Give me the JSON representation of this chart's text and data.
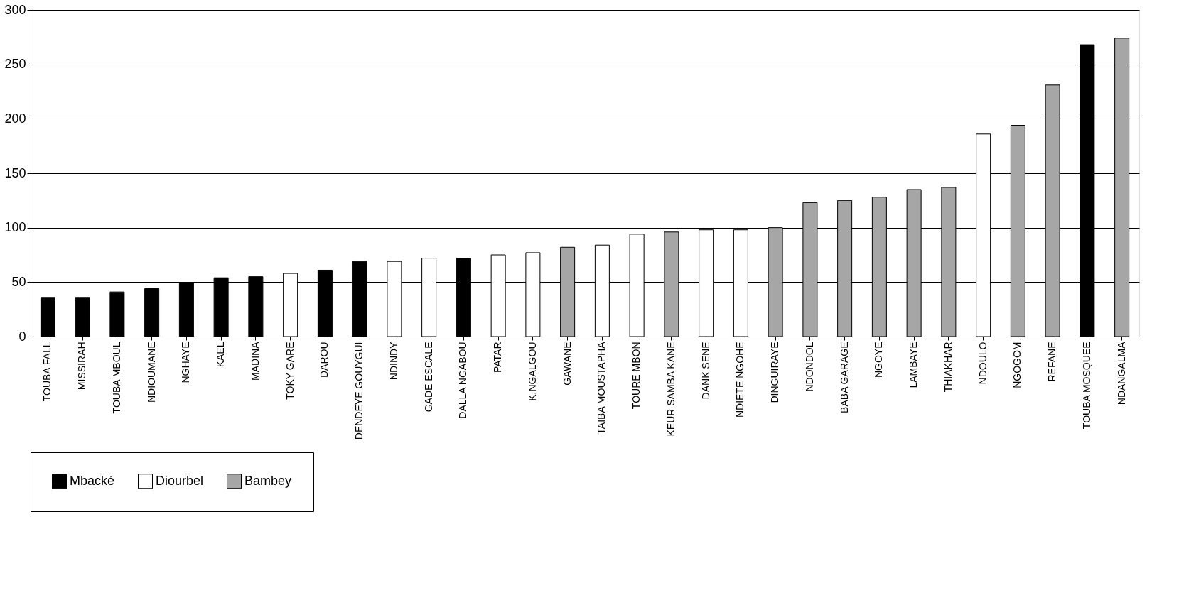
{
  "chart_data": {
    "type": "bar",
    "categories": [
      "TOUBA FALL",
      "MISSIRAH",
      "TOUBA MBOUL",
      "NDIOUMANE",
      "NGHAYE",
      "KAEL",
      "MADINA",
      "TOKY GARE",
      "DAROU",
      "DENDEYE GOUYGUI",
      "NDINDY",
      "GADE ESCALE",
      "DALLA NGABOU",
      "PATAR",
      "K.NGALGOU",
      "GAWANE",
      "TAIBA MOUSTAPHA",
      "TOURE MBON",
      "KEUR SAMBA KANE",
      "DANK SENE",
      "NDIETE NGOHE",
      "DINGUIRAYE",
      "NDONDOL",
      "BABA GARAGE",
      "NGOYE",
      "LAMBAYE",
      "THIAKHAR",
      "NDOULO",
      "NGOGOM",
      "REFANE",
      "TOUBA MOSQUEE",
      "NDANGALMA"
    ],
    "series": [
      {
        "name": "Mbacké",
        "color": "#000000",
        "values": [
          36,
          36,
          41,
          44,
          49,
          54,
          55,
          null,
          61,
          69,
          null,
          null,
          72,
          null,
          null,
          null,
          null,
          null,
          null,
          null,
          null,
          null,
          null,
          null,
          null,
          null,
          null,
          null,
          null,
          null,
          268,
          null
        ]
      },
      {
        "name": "Diourbel",
        "color": "#ffffff",
        "values": [
          null,
          null,
          null,
          null,
          null,
          null,
          null,
          58,
          null,
          null,
          69,
          72,
          null,
          75,
          77,
          null,
          84,
          94,
          null,
          98,
          98,
          null,
          null,
          null,
          null,
          null,
          null,
          186,
          null,
          null,
          null,
          null
        ]
      },
      {
        "name": "Bambey",
        "color": "#a6a6a6",
        "values": [
          null,
          null,
          null,
          null,
          null,
          null,
          null,
          null,
          null,
          null,
          null,
          null,
          null,
          null,
          null,
          82,
          null,
          null,
          96,
          null,
          null,
          100,
          123,
          125,
          128,
          135,
          137,
          null,
          194,
          231,
          null,
          274
        ]
      }
    ],
    "ylim": [
      0,
      300
    ],
    "yticks": [
      0,
      50,
      100,
      150,
      200,
      250,
      300
    ],
    "grid": "y",
    "legend": "bottom"
  }
}
